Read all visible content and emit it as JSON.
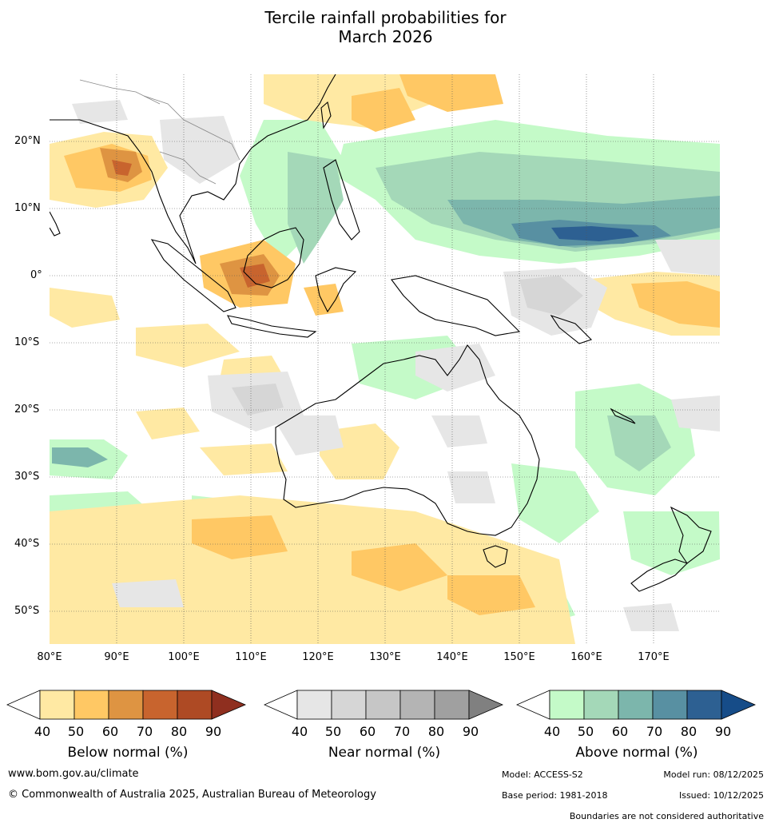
{
  "title_line1": "Tercile rainfall probabilities for",
  "title_line2": "March 2026",
  "lat_labels": [
    "20°N",
    "10°N",
    "0°",
    "10°S",
    "20°S",
    "30°S",
    "40°S",
    "50°S"
  ],
  "lon_labels": [
    "80°E",
    "90°E",
    "100°E",
    "110°E",
    "120°E",
    "130°E",
    "140°E",
    "150°E",
    "160°E",
    "170°E"
  ],
  "legends": [
    {
      "title": "Below normal (%)",
      "colors": [
        "#ffffff",
        "#ffe9a3",
        "#ffc864",
        "#de9442",
        "#c8642e",
        "#ae4a24",
        "#8f2f1f"
      ],
      "ticks": [
        "40",
        "50",
        "60",
        "70",
        "80",
        "90"
      ]
    },
    {
      "title": "Near normal (%)",
      "colors": [
        "#ffffff",
        "#e6e6e6",
        "#d6d6d6",
        "#c6c6c6",
        "#b4b4b4",
        "#a0a0a0",
        "#808080"
      ],
      "ticks": [
        "40",
        "50",
        "60",
        "70",
        "80",
        "90"
      ]
    },
    {
      "title": "Above normal (%)",
      "colors": [
        "#ffffff",
        "#c4fac8",
        "#a4d8b8",
        "#7cb6ac",
        "#5890a2",
        "#2d6092",
        "#164c88"
      ],
      "ticks": [
        "40",
        "50",
        "60",
        "70",
        "80",
        "90"
      ]
    }
  ],
  "footer": {
    "website": "www.bom.gov.au/climate",
    "copyright": "© Commonwealth of Australia 2025, Australian Bureau of Meteorology",
    "model": "Model: ACCESS-S2",
    "model_run": "Model run: 08/12/2025",
    "base_period": "Base period: 1981-2018",
    "issued": "Issued: 10/12/2025",
    "disclaimer": "Boundaries are not considered authoritative"
  }
}
